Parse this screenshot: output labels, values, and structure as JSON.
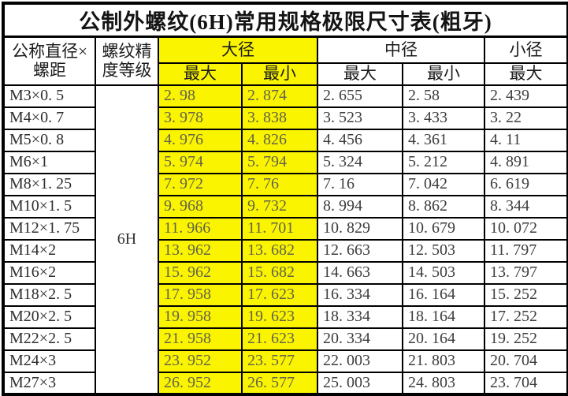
{
  "title": "公制外螺纹(6H)常用规格极限尺寸表(粗牙)",
  "colors": {
    "highlight": "#faf400",
    "border": "#000000",
    "background": "#ffffff",
    "yellow_cell_text": "#63634c",
    "number_text": "#3d3d3d"
  },
  "header": {
    "spec_line1": "公称直径×",
    "spec_line2": "螺距",
    "grade_line1": "螺纹精",
    "grade_line2": "度等级",
    "major_group": "大径",
    "pitch_group": "中径",
    "minor_group": "小径",
    "sub_max_major": "最大",
    "sub_min_major": "最小",
    "sub_max_pitch": "最大",
    "sub_min_pitch": "最小",
    "sub_max_minor": "最大"
  },
  "chart_data": {
    "type": "table",
    "title": "公制外螺纹(6H)常用规格极限尺寸表(粗牙)",
    "column_groups": [
      {
        "label": "公称直径×螺距",
        "span": 1
      },
      {
        "label": "螺纹精度等级",
        "span": 1
      },
      {
        "label": "大径",
        "span": 2,
        "highlight": true
      },
      {
        "label": "中径",
        "span": 2
      },
      {
        "label": "小径",
        "span": 1
      }
    ],
    "sub_headers": [
      "最大",
      "最小",
      "最大",
      "最小",
      "最大"
    ],
    "grade": "6H",
    "rows": [
      [
        "M3×0. 5",
        "2. 98",
        "2. 874",
        "2. 655",
        "2. 58",
        "2. 439"
      ],
      [
        "M4×0. 7",
        "3. 978",
        "3. 838",
        "3. 523",
        "3. 433",
        "3. 22"
      ],
      [
        "M5×0. 8",
        "4. 976",
        "4. 826",
        "4. 456",
        "4. 361",
        "4. 11"
      ],
      [
        "M6×1",
        "5. 974",
        "5. 794",
        "5. 324",
        "5. 212",
        "4. 891"
      ],
      [
        "M8×1. 25",
        "7. 972",
        "7. 76",
        "7. 16",
        "7. 042",
        "6. 619"
      ],
      [
        "M10×1. 5",
        "9. 968",
        "9. 732",
        "8. 994",
        "8. 862",
        "8. 344"
      ],
      [
        "M12×1. 75",
        "11. 966",
        "11. 701",
        "10. 829",
        "10. 679",
        "10. 072"
      ],
      [
        "M14×2",
        "13. 962",
        "13. 682",
        "12. 663",
        "12. 503",
        "11. 797"
      ],
      [
        "M16×2",
        "15. 962",
        "15. 682",
        "14. 663",
        "14. 503",
        "13. 797"
      ],
      [
        "M18×2. 5",
        "17. 958",
        "17. 623",
        "16. 334",
        "16. 164",
        "15. 252"
      ],
      [
        "M20×2. 5",
        "19. 958",
        "19. 623",
        "18. 334",
        "18. 164",
        "17. 252"
      ],
      [
        "M22×2. 5",
        "21. 958",
        "21. 623",
        "20. 334",
        "20. 164",
        "19. 252"
      ],
      [
        "M24×3",
        "23. 952",
        "23. 577",
        "22. 003",
        "21. 803",
        "20. 704"
      ],
      [
        "M27×3",
        "26. 952",
        "26. 577",
        "25. 003",
        "24. 803",
        "23. 704"
      ]
    ]
  }
}
